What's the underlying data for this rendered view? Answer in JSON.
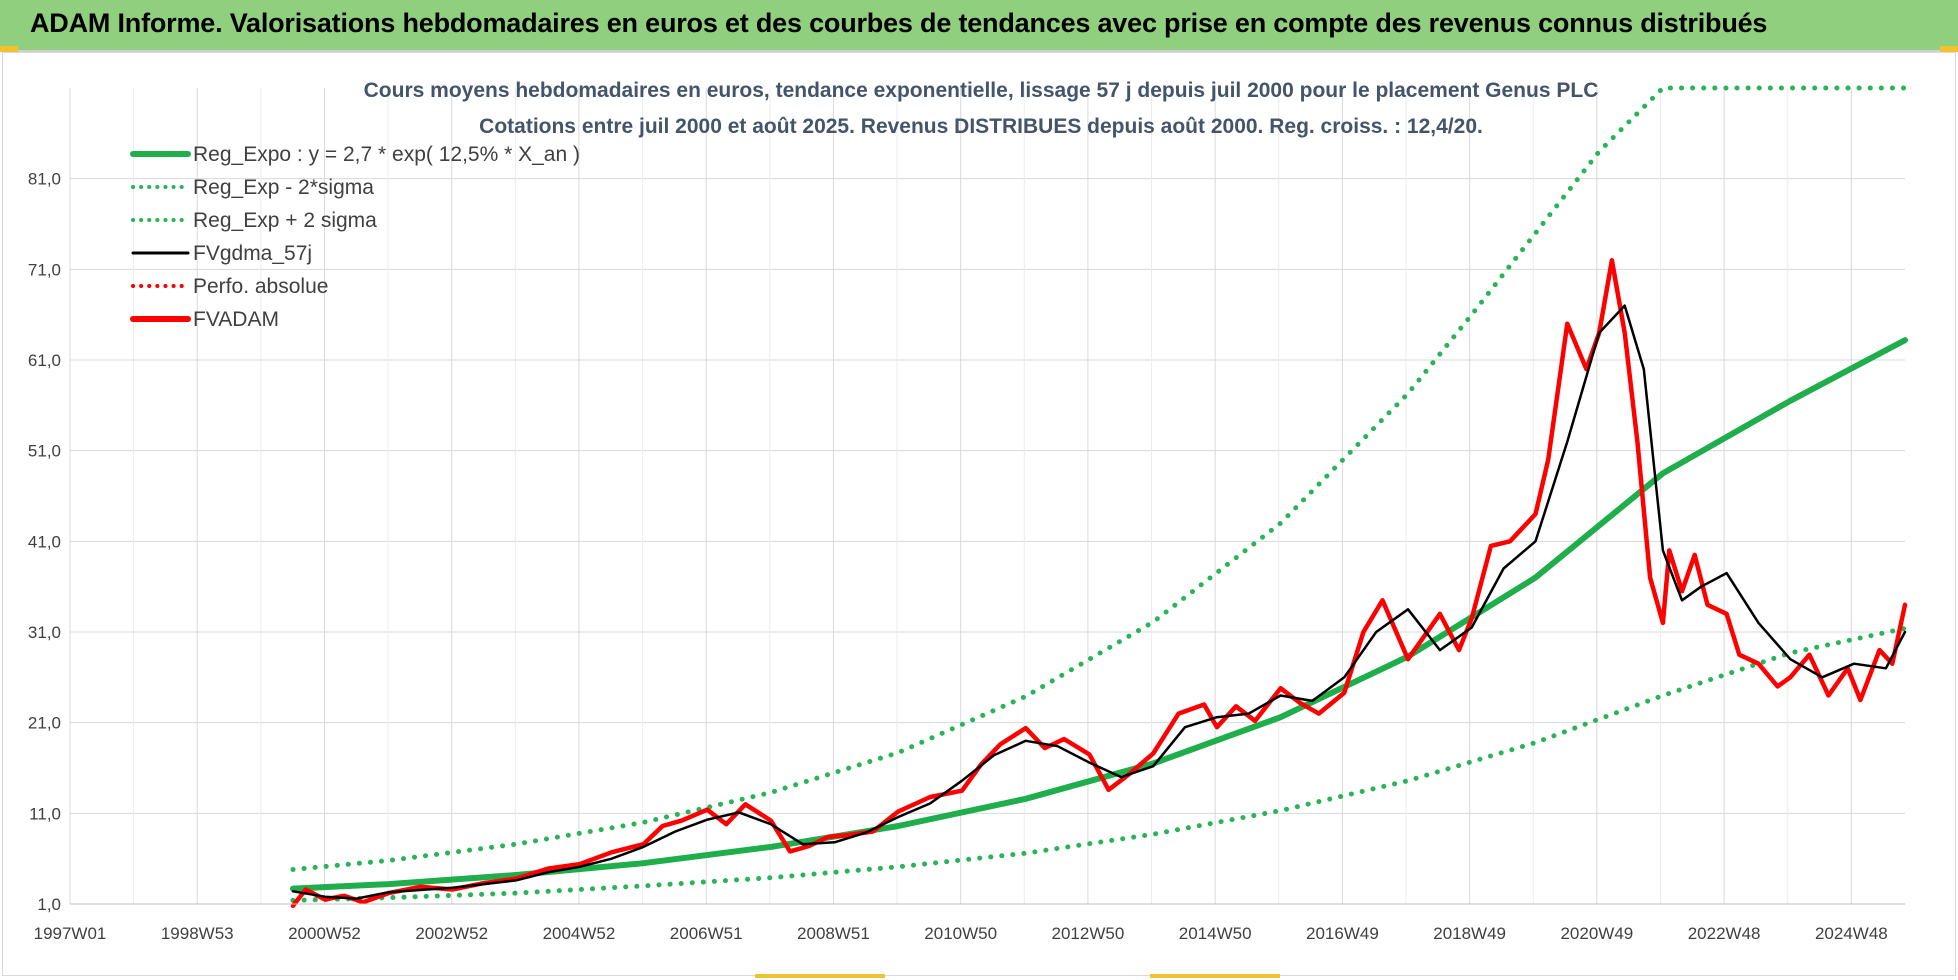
{
  "banner": {
    "title": "ADAM Informe. Valorisations hebdomadaires en euros et des courbes de tendances avec prise en compte des revenus connus distribués"
  },
  "colors": {
    "banner_bg": "#8fcf7e",
    "reg_green": "#1fae4b",
    "sigma_green": "#2ab457",
    "gdma_black": "#000000",
    "adam_red": "#ff0000"
  },
  "chart_data": {
    "type": "line",
    "title_line1": "Cours moyens hebdomadaires en euros, tendance exponentielle, lissage 57 j depuis juil 2000 pour le placement Genus PLC",
    "title_line2": "Cotations entre juil 2000 et août 2025. Revenus DISTRIBUES depuis août 2000. Reg. croiss. : 12,4/20.",
    "x_tick_labels": [
      "1997W01",
      "1998W53",
      "2000W52",
      "2002W52",
      "2004W52",
      "2006W51",
      "2008W51",
      "2010W50",
      "2012W50",
      "2014W50",
      "2016W49",
      "2018W49",
      "2020W49",
      "2022W48",
      "2024W48"
    ],
    "y_tick_labels": [
      "1,0",
      "11,0",
      "21,0",
      "31,0",
      "41,0",
      "51,0",
      "61,0",
      "71,0",
      "81,0"
    ],
    "ylim": [
      1,
      91
    ],
    "xlim": [
      1997.0,
      2025.8
    ],
    "grid": true,
    "legend_position": "top-left",
    "legend": [
      {
        "label": "Reg_Expo : y = 2,7 * exp( 12,5% *  X_an )",
        "style": "solid-thick",
        "color": "#1fae4b"
      },
      {
        "label": "Reg_Exp - 2*sigma",
        "style": "dotted",
        "color": "#2ab457"
      },
      {
        "label": "Reg_Exp + 2 sigma",
        "style": "dotted",
        "color": "#2ab457"
      },
      {
        "label": "FVgdma_57j",
        "style": "solid",
        "color": "#000000"
      },
      {
        "label": "Perfo. absolue",
        "style": "dotted",
        "color": "#ff0000"
      },
      {
        "label": "FVADAM",
        "style": "solid-thick",
        "color": "#ff0000"
      }
    ],
    "series": [
      {
        "name": "Reg_Expo : y = 2,7 * exp( 12,5% *  X_an )",
        "x": [
          2000.5,
          2002.0,
          2004.0,
          2006.0,
          2008.0,
          2010.0,
          2012.0,
          2014.0,
          2016.0,
          2018.0,
          2020.0,
          2022.0,
          2024.0,
          2025.8
        ],
        "values": [
          2.7,
          3.2,
          4.2,
          5.5,
          7.3,
          9.6,
          12.6,
          16.5,
          21.6,
          28.3,
          37.0,
          48.5,
          56.5,
          63.2
        ]
      },
      {
        "name": "Reg_Exp - 2*sigma",
        "x": [
          2000.5,
          2002.0,
          2004.0,
          2006.0,
          2008.0,
          2010.0,
          2012.0,
          2014.0,
          2016.0,
          2018.0,
          2020.0,
          2022.0,
          2024.0,
          2025.8
        ],
        "values": [
          1.4,
          1.7,
          2.2,
          3.0,
          3.9,
          5.1,
          6.6,
          8.7,
          11.3,
          14.6,
          18.8,
          24.0,
          28.7,
          31.4
        ]
      },
      {
        "name": "Reg_Exp + 2 sigma",
        "x": [
          2000.5,
          2002.0,
          2004.0,
          2006.0,
          2008.0,
          2010.0,
          2012.0,
          2014.0,
          2016.0,
          2018.0,
          2019.0,
          2020.0,
          2021.0,
          2022.0,
          2022.1,
          2025.8
        ],
        "values": [
          4.8,
          5.8,
          7.6,
          10.0,
          13.3,
          17.7,
          23.9,
          32.1,
          43.0,
          57.3,
          66.0,
          75.0,
          84.0,
          91.0,
          91.0,
          91.0
        ]
      },
      {
        "name": "FVgdma_57j",
        "x": [
          2000.5,
          2001.0,
          2001.5,
          2002.0,
          2003.0,
          2004.0,
          2004.5,
          2005.0,
          2005.5,
          2006.0,
          2006.5,
          2007.0,
          2007.5,
          2008.0,
          2008.5,
          2009.0,
          2009.5,
          2010.0,
          2010.5,
          2011.0,
          2011.5,
          2012.0,
          2012.5,
          2013.0,
          2013.5,
          2014.0,
          2014.5,
          2015.0,
          2015.5,
          2016.0,
          2016.5,
          2017.0,
          2017.5,
          2018.0,
          2018.5,
          2019.0,
          2019.5,
          2020.0,
          2020.5,
          2021.0,
          2021.4,
          2021.7,
          2022.0,
          2022.3,
          2022.6,
          2023.0,
          2023.5,
          2024.0,
          2024.5,
          2025.0,
          2025.5,
          2025.8
        ],
        "values": [
          2.4,
          1.8,
          1.6,
          2.3,
          2.8,
          3.6,
          4.5,
          5.1,
          6.0,
          7.3,
          9.0,
          10.3,
          11.1,
          9.8,
          7.6,
          7.8,
          8.9,
          10.6,
          12.1,
          14.6,
          17.4,
          19.0,
          18.4,
          16.6,
          15.0,
          16.2,
          20.5,
          21.6,
          22.0,
          24.0,
          23.4,
          26.0,
          31.0,
          33.5,
          29.0,
          31.5,
          38.0,
          41.0,
          52.0,
          64.0,
          67.0,
          60.0,
          40.0,
          34.5,
          36.0,
          37.5,
          32.0,
          28.0,
          26.0,
          27.5,
          27.0,
          31.0
        ]
      },
      {
        "name": "FVADAM",
        "x": [
          2000.5,
          2000.7,
          2001.0,
          2001.3,
          2001.6,
          2002.0,
          2002.5,
          2003.0,
          2003.5,
          2004.0,
          2004.5,
          2005.0,
          2005.5,
          2006.0,
          2006.3,
          2006.6,
          2007.0,
          2007.3,
          2007.6,
          2008.0,
          2008.3,
          2008.6,
          2008.9,
          2009.2,
          2009.6,
          2010.0,
          2010.5,
          2011.0,
          2011.3,
          2011.6,
          2012.0,
          2012.3,
          2012.6,
          2013.0,
          2013.3,
          2013.6,
          2014.0,
          2014.4,
          2014.8,
          2015.0,
          2015.3,
          2015.6,
          2016.0,
          2016.3,
          2016.6,
          2017.0,
          2017.3,
          2017.6,
          2018.0,
          2018.2,
          2018.5,
          2018.8,
          2019.0,
          2019.3,
          2019.6,
          2020.0,
          2020.2,
          2020.5,
          2020.8,
          2021.0,
          2021.2,
          2021.4,
          2021.6,
          2021.8,
          2022.0,
          2022.1,
          2022.3,
          2022.5,
          2022.7,
          2023.0,
          2023.2,
          2023.5,
          2023.8,
          2024.0,
          2024.3,
          2024.6,
          2024.9,
          2025.1,
          2025.4,
          2025.6,
          2025.8
        ],
        "values": [
          0.8,
          2.6,
          1.5,
          1.9,
          1.2,
          2.2,
          2.9,
          2.6,
          3.3,
          3.8,
          4.9,
          5.4,
          6.7,
          7.6,
          9.6,
          10.2,
          11.4,
          9.8,
          12.0,
          10.2,
          6.8,
          7.4,
          8.4,
          8.6,
          9.0,
          11.2,
          12.8,
          13.5,
          16.4,
          18.6,
          20.4,
          18.2,
          19.2,
          17.5,
          13.6,
          15.2,
          17.6,
          22.0,
          23.0,
          20.5,
          22.8,
          21.2,
          24.8,
          23.2,
          22.0,
          24.3,
          31.0,
          34.5,
          28.0,
          30.0,
          33.0,
          29.0,
          32.5,
          40.5,
          41.0,
          44.0,
          50.0,
          65.0,
          60.0,
          64.0,
          72.0,
          64.0,
          52.0,
          37.0,
          32.0,
          40.0,
          35.5,
          39.5,
          34.0,
          33.0,
          28.5,
          27.5,
          25.0,
          26.0,
          28.5,
          24.0,
          27.0,
          23.5,
          29.0,
          27.5,
          34.0
        ]
      }
    ]
  }
}
